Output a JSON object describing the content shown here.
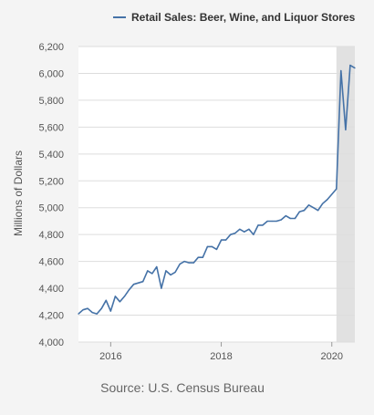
{
  "chart_data": {
    "type": "line",
    "title": "",
    "ylabel": "Millions of Dollars",
    "xlabel": "",
    "source": "Source: U.S. Census Bureau",
    "legend": {
      "position": "top",
      "entries": [
        "Retail Sales: Beer, Wine, and Liquor Stores"
      ]
    },
    "ylim": [
      4000,
      6200
    ],
    "yticks": [
      4000,
      4200,
      4400,
      4600,
      4800,
      5000,
      5200,
      5400,
      5600,
      5800,
      6000,
      6200
    ],
    "ytick_labels": [
      "4,000",
      "4,200",
      "4,400",
      "4,600",
      "4,800",
      "5,000",
      "5,200",
      "5,400",
      "5,600",
      "5,800",
      "6,000",
      "6,200"
    ],
    "xlim": [
      "2015-06",
      "2020-06"
    ],
    "xticks": [
      "2016",
      "2018",
      "2020"
    ],
    "grid": true,
    "recession_shading": {
      "start": "2020-02",
      "end": "2020-06"
    },
    "colors": {
      "series": "#4572a7",
      "shading": "#e1e1e1",
      "background": "#f4f4f4",
      "plot": "#ffffff",
      "grid": "#dddddd"
    },
    "series": [
      {
        "name": "Retail Sales: Beer, Wine, and Liquor Stores",
        "x": [
          "2015-06",
          "2015-07",
          "2015-08",
          "2015-09",
          "2015-10",
          "2015-11",
          "2015-12",
          "2016-01",
          "2016-02",
          "2016-03",
          "2016-04",
          "2016-05",
          "2016-06",
          "2016-07",
          "2016-08",
          "2016-09",
          "2016-10",
          "2016-11",
          "2016-12",
          "2017-01",
          "2017-02",
          "2017-03",
          "2017-04",
          "2017-05",
          "2017-06",
          "2017-07",
          "2017-08",
          "2017-09",
          "2017-10",
          "2017-11",
          "2017-12",
          "2018-01",
          "2018-02",
          "2018-03",
          "2018-04",
          "2018-05",
          "2018-06",
          "2018-07",
          "2018-08",
          "2018-09",
          "2018-10",
          "2018-11",
          "2018-12",
          "2019-01",
          "2019-02",
          "2019-03",
          "2019-04",
          "2019-05",
          "2019-06",
          "2019-07",
          "2019-08",
          "2019-09",
          "2019-10",
          "2019-11",
          "2019-12",
          "2020-01",
          "2020-02",
          "2020-03",
          "2020-04",
          "2020-05",
          "2020-06"
        ],
        "values": [
          4210,
          4240,
          4250,
          4220,
          4210,
          4250,
          4310,
          4230,
          4340,
          4300,
          4340,
          4390,
          4430,
          4440,
          4450,
          4530,
          4510,
          4560,
          4400,
          4530,
          4500,
          4520,
          4580,
          4600,
          4590,
          4590,
          4630,
          4630,
          4710,
          4710,
          4690,
          4760,
          4760,
          4800,
          4810,
          4840,
          4820,
          4840,
          4800,
          4870,
          4870,
          4900,
          4900,
          4900,
          4910,
          4940,
          4920,
          4920,
          4970,
          4980,
          5020,
          5000,
          4980,
          5030,
          5060,
          5100,
          5140,
          6020,
          5580,
          6060,
          6040
        ]
      }
    ]
  }
}
